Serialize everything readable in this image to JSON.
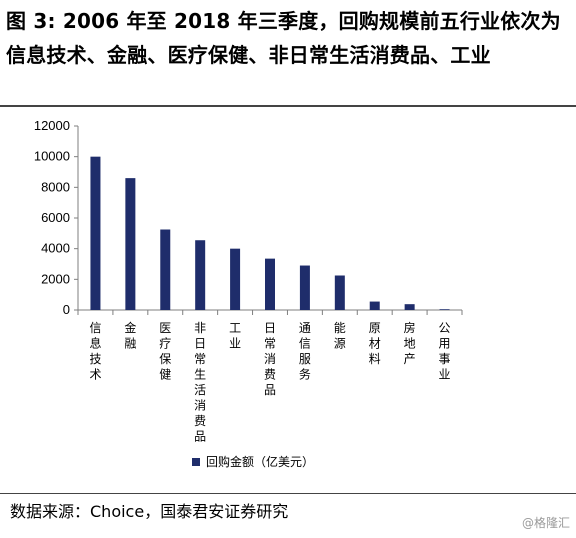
{
  "header": {
    "title": "图 3: 2006 年至 2018 年三季度，回购规模前五行业依次为信息技术、金融、医疗保健、非日常生活消费品、工业"
  },
  "footer": {
    "source": "数据来源：Choice，国泰君安证券研究",
    "watermark": "@格隆汇"
  },
  "chart_data": {
    "type": "bar",
    "categories": [
      "信息技术",
      "金融",
      "医疗保健",
      "非日常生活消费品",
      "工业",
      "日常消费品",
      "通信服务",
      "能源",
      "原材料",
      "房地产",
      "公用事业"
    ],
    "series": [
      {
        "name": "回购金额（亿美元）",
        "color": "#1f2d6b",
        "values": [
          10000,
          8600,
          5250,
          4550,
          4000,
          3350,
          2900,
          2250,
          550,
          380,
          50
        ]
      }
    ],
    "ylim": [
      0,
      12000
    ],
    "yticks": [
      0,
      2000,
      4000,
      6000,
      8000,
      10000,
      12000
    ],
    "grid": false,
    "legend_position": "bottom"
  }
}
